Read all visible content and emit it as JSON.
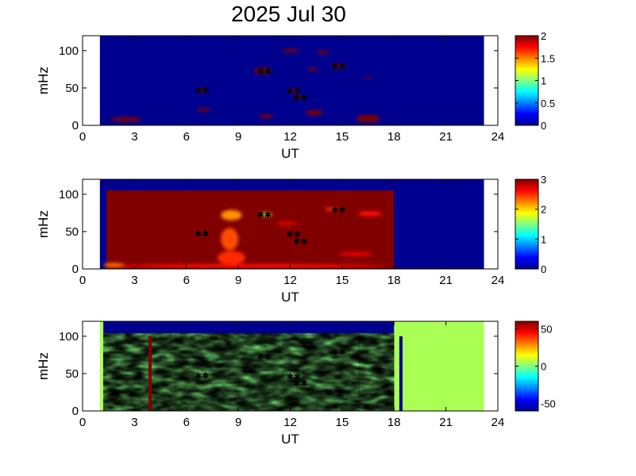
{
  "title": "2025 Jul 30",
  "chart_data": [
    {
      "type": "heatmap",
      "xlabel": "UT",
      "ylabel": "mHz",
      "xlim": [
        0,
        24
      ],
      "ylim": [
        0,
        120
      ],
      "xticks": [
        "0",
        "3",
        "6",
        "9",
        "12",
        "15",
        "18",
        "21",
        "24"
      ],
      "yticks": [
        "0",
        "50",
        "100"
      ],
      "data_extent_x": [
        1.0,
        23.2
      ],
      "colorbar": {
        "min": 0,
        "max": 2,
        "ticks": [
          "0",
          "0.5",
          "1",
          "1.5",
          "2"
        ]
      },
      "background_value": 0,
      "features": [
        {
          "x": 2.5,
          "y": 8,
          "w": 1.8,
          "h": 6,
          "value": 2
        },
        {
          "x": 6.9,
          "y": 47,
          "w": 0.4,
          "h": 4,
          "value": 2
        },
        {
          "x": 7.0,
          "y": 21,
          "w": 0.8,
          "h": 3,
          "value": 2
        },
        {
          "x": 10.4,
          "y": 73,
          "w": 1.0,
          "h": 8,
          "value": 2
        },
        {
          "x": 10.6,
          "y": 12,
          "w": 0.8,
          "h": 5,
          "value": 2
        },
        {
          "x": 12.2,
          "y": 46,
          "w": 0.6,
          "h": 4,
          "value": 2
        },
        {
          "x": 12.5,
          "y": 37,
          "w": 0.5,
          "h": 4,
          "value": 2
        },
        {
          "x": 12.0,
          "y": 100,
          "w": 1.0,
          "h": 3,
          "value": 2
        },
        {
          "x": 13.4,
          "y": 17,
          "w": 1.0,
          "h": 7,
          "value": 2
        },
        {
          "x": 13.9,
          "y": 98,
          "w": 0.7,
          "h": 3,
          "value": 2
        },
        {
          "x": 13.3,
          "y": 75,
          "w": 0.6,
          "h": 4,
          "value": 2
        },
        {
          "x": 14.8,
          "y": 79,
          "w": 0.9,
          "h": 5,
          "value": 2
        },
        {
          "x": 16.5,
          "y": 9,
          "w": 1.4,
          "h": 10,
          "value": 2
        },
        {
          "x": 16.5,
          "y": 64,
          "w": 0.3,
          "h": 4,
          "value": 2
        }
      ]
    },
    {
      "type": "heatmap",
      "xlabel": "UT",
      "ylabel": "mHz",
      "xlim": [
        0,
        24
      ],
      "ylim": [
        0,
        120
      ],
      "xticks": [
        "0",
        "3",
        "6",
        "9",
        "12",
        "15",
        "18",
        "21",
        "24"
      ],
      "yticks": [
        "0",
        "50",
        "100"
      ],
      "data_extent_x": [
        1.0,
        23.2
      ],
      "active_extent_x": [
        1.2,
        18.0
      ],
      "active_top_mhz": 105,
      "colorbar": {
        "min": 0,
        "max": 3,
        "ticks": [
          "0",
          "1",
          "2",
          "3"
        ]
      },
      "background_value": 0,
      "saturated_value": 3,
      "features": [
        {
          "x": 8.6,
          "y": 72,
          "w": 1.2,
          "h": 14,
          "value": 2.2
        },
        {
          "x": 8.5,
          "y": 40,
          "w": 1.0,
          "h": 30,
          "value": 2.4
        },
        {
          "x": 8.6,
          "y": 15,
          "w": 1.6,
          "h": 18,
          "value": 2.5
        },
        {
          "x": 9.5,
          "y": 4,
          "w": 16.0,
          "h": 5,
          "value": 2.6
        },
        {
          "x": 1.8,
          "y": 5,
          "w": 1.2,
          "h": 6,
          "value": 2.3
        },
        {
          "x": 10.6,
          "y": 73,
          "w": 0.7,
          "h": 4,
          "value": 1.8
        },
        {
          "x": 11.8,
          "y": 61,
          "w": 1.2,
          "h": 5,
          "value": 2.7
        },
        {
          "x": 15.8,
          "y": 20,
          "w": 2.0,
          "h": 6,
          "value": 2.7
        },
        {
          "x": 16.6,
          "y": 74,
          "w": 1.4,
          "h": 7,
          "value": 2.6
        },
        {
          "x": 14.4,
          "y": 80,
          "w": 0.8,
          "h": 4,
          "value": 2.5
        }
      ]
    },
    {
      "type": "heatmap",
      "xlabel": "UT",
      "ylabel": "mHz",
      "xlim": [
        0,
        24
      ],
      "ylim": [
        0,
        120
      ],
      "xticks": [
        "0",
        "3",
        "6",
        "9",
        "12",
        "15",
        "18",
        "21",
        "24"
      ],
      "yticks": [
        "0",
        "50",
        "100"
      ],
      "data_extent_x": [
        1.0,
        23.2
      ],
      "active_extent_x": [
        1.2,
        18.0
      ],
      "active_top_mhz": 104,
      "colorbar": {
        "min": -60,
        "max": 60,
        "ticks": [
          "-50",
          "0",
          "50"
        ]
      },
      "fill_after_18ut_value": 5,
      "markers": [
        {
          "type": "vertical-line",
          "x": 3.9,
          "y0": 0,
          "y1": 100,
          "value": 60
        },
        {
          "type": "vertical-line",
          "x": 18.4,
          "y0": 0,
          "y1": 100,
          "value": -60
        },
        {
          "type": "dotted-line",
          "x": 5.4
        },
        {
          "type": "dotted-line",
          "x": 16.0
        }
      ]
    }
  ],
  "marker_points": [
    {
      "x": 6.9,
      "y": 47
    },
    {
      "x": 10.5,
      "y": 73
    },
    {
      "x": 12.2,
      "y": 46
    },
    {
      "x": 12.6,
      "y": 37
    },
    {
      "x": 14.8,
      "y": 79
    }
  ]
}
